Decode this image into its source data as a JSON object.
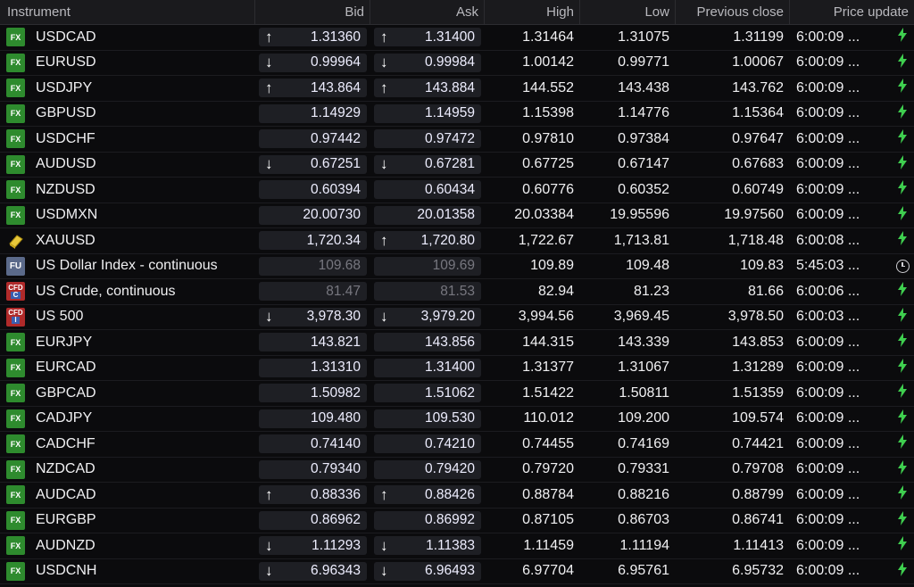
{
  "header": {
    "instrument": "Instrument",
    "bid": "Bid",
    "ask": "Ask",
    "high": "High",
    "low": "Low",
    "prev_close": "Previous close",
    "price_update": "Price update"
  },
  "colors": {
    "accent_up_down_arrows": "#ffffff",
    "bolt": "#3fcf4f",
    "fx_badge": "#2e8b2e",
    "cfd_badge": "#b02a2a"
  },
  "rows": [
    {
      "type": "fx",
      "badge": "FX",
      "name": "USDCAD",
      "bid": "1.31360",
      "bid_dir": "up",
      "ask": "1.31400",
      "ask_dir": "up",
      "high": "1.31464",
      "low": "1.31075",
      "prev": "1.31199",
      "time": "6:00:09 ...",
      "icon": "bolt"
    },
    {
      "type": "fx",
      "badge": "FX",
      "name": "EURUSD",
      "bid": "0.99964",
      "bid_dir": "down",
      "ask": "0.99984",
      "ask_dir": "down",
      "high": "1.00142",
      "low": "0.99771",
      "prev": "1.00067",
      "time": "6:00:09 ...",
      "icon": "bolt"
    },
    {
      "type": "fx",
      "badge": "FX",
      "name": "USDJPY",
      "bid": "143.864",
      "bid_dir": "up",
      "ask": "143.884",
      "ask_dir": "up",
      "high": "144.552",
      "low": "143.438",
      "prev": "143.762",
      "time": "6:00:09 ...",
      "icon": "bolt"
    },
    {
      "type": "fx",
      "badge": "FX",
      "name": "GBPUSD",
      "bid": "1.14929",
      "bid_dir": "",
      "ask": "1.14959",
      "ask_dir": "",
      "high": "1.15398",
      "low": "1.14776",
      "prev": "1.15364",
      "time": "6:00:09 ...",
      "icon": "bolt"
    },
    {
      "type": "fx",
      "badge": "FX",
      "name": "USDCHF",
      "bid": "0.97442",
      "bid_dir": "",
      "ask": "0.97472",
      "ask_dir": "",
      "high": "0.97810",
      "low": "0.97384",
      "prev": "0.97647",
      "time": "6:00:09 ...",
      "icon": "bolt"
    },
    {
      "type": "fx",
      "badge": "FX",
      "name": "AUDUSD",
      "bid": "0.67251",
      "bid_dir": "down",
      "ask": "0.67281",
      "ask_dir": "down",
      "high": "0.67725",
      "low": "0.67147",
      "prev": "0.67683",
      "time": "6:00:09 ...",
      "icon": "bolt"
    },
    {
      "type": "fx",
      "badge": "FX",
      "name": "NZDUSD",
      "bid": "0.60394",
      "bid_dir": "",
      "ask": "0.60434",
      "ask_dir": "",
      "high": "0.60776",
      "low": "0.60352",
      "prev": "0.60749",
      "time": "6:00:09 ...",
      "icon": "bolt"
    },
    {
      "type": "fx",
      "badge": "FX",
      "name": "USDMXN",
      "bid": "20.00730",
      "bid_dir": "",
      "ask": "20.01358",
      "ask_dir": "",
      "high": "20.03384",
      "low": "19.95596",
      "prev": "19.97560",
      "time": "6:00:09 ...",
      "icon": "bolt"
    },
    {
      "type": "gold",
      "badge": "",
      "name": "XAUUSD",
      "bid": "1,720.34",
      "bid_dir": "",
      "ask": "1,720.80",
      "ask_dir": "up",
      "high": "1,722.67",
      "low": "1,713.81",
      "prev": "1,718.48",
      "time": "6:00:08 ...",
      "icon": "bolt"
    },
    {
      "type": "fu",
      "badge": "FU",
      "name": "US Dollar Index - continuous",
      "bid": "109.68",
      "bid_dir": "",
      "ask": "109.69",
      "ask_dir": "",
      "dim": true,
      "high": "109.89",
      "low": "109.48",
      "prev": "109.83",
      "time": "5:45:03 ...",
      "icon": "clock"
    },
    {
      "type": "cfd",
      "badge": "CFD",
      "badge2": "C",
      "name": "US Crude, continuous",
      "bid": "81.47",
      "bid_dir": "",
      "ask": "81.53",
      "ask_dir": "",
      "dim": true,
      "high": "82.94",
      "low": "81.23",
      "prev": "81.66",
      "time": "6:00:06 ...",
      "icon": "bolt"
    },
    {
      "type": "cfd",
      "badge": "CFD",
      "badge2": "I",
      "name": "US 500",
      "bid": "3,978.30",
      "bid_dir": "down",
      "ask": "3,979.20",
      "ask_dir": "down",
      "high": "3,994.56",
      "low": "3,969.45",
      "prev": "3,978.50",
      "time": "6:00:03 ...",
      "icon": "bolt"
    },
    {
      "type": "fx",
      "badge": "FX",
      "name": "EURJPY",
      "bid": "143.821",
      "bid_dir": "",
      "ask": "143.856",
      "ask_dir": "",
      "high": "144.315",
      "low": "143.339",
      "prev": "143.853",
      "time": "6:00:09 ...",
      "icon": "bolt"
    },
    {
      "type": "fx",
      "badge": "FX",
      "name": "EURCAD",
      "bid": "1.31310",
      "bid_dir": "",
      "ask": "1.31400",
      "ask_dir": "",
      "high": "1.31377",
      "low": "1.31067",
      "prev": "1.31289",
      "time": "6:00:09 ...",
      "icon": "bolt"
    },
    {
      "type": "fx",
      "badge": "FX",
      "name": "GBPCAD",
      "bid": "1.50982",
      "bid_dir": "",
      "ask": "1.51062",
      "ask_dir": "",
      "high": "1.51422",
      "low": "1.50811",
      "prev": "1.51359",
      "time": "6:00:09 ...",
      "icon": "bolt"
    },
    {
      "type": "fx",
      "badge": "FX",
      "name": "CADJPY",
      "bid": "109.480",
      "bid_dir": "",
      "ask": "109.530",
      "ask_dir": "",
      "high": "110.012",
      "low": "109.200",
      "prev": "109.574",
      "time": "6:00:09 ...",
      "icon": "bolt"
    },
    {
      "type": "fx",
      "badge": "FX",
      "name": "CADCHF",
      "bid": "0.74140",
      "bid_dir": "",
      "ask": "0.74210",
      "ask_dir": "",
      "high": "0.74455",
      "low": "0.74169",
      "prev": "0.74421",
      "time": "6:00:09 ...",
      "icon": "bolt"
    },
    {
      "type": "fx",
      "badge": "FX",
      "name": "NZDCAD",
      "bid": "0.79340",
      "bid_dir": "",
      "ask": "0.79420",
      "ask_dir": "",
      "high": "0.79720",
      "low": "0.79331",
      "prev": "0.79708",
      "time": "6:00:09 ...",
      "icon": "bolt"
    },
    {
      "type": "fx",
      "badge": "FX",
      "name": "AUDCAD",
      "bid": "0.88336",
      "bid_dir": "up",
      "ask": "0.88426",
      "ask_dir": "up",
      "high": "0.88784",
      "low": "0.88216",
      "prev": "0.88799",
      "time": "6:00:09 ...",
      "icon": "bolt"
    },
    {
      "type": "fx",
      "badge": "FX",
      "name": "EURGBP",
      "bid": "0.86962",
      "bid_dir": "",
      "ask": "0.86992",
      "ask_dir": "",
      "high": "0.87105",
      "low": "0.86703",
      "prev": "0.86741",
      "time": "6:00:09 ...",
      "icon": "bolt"
    },
    {
      "type": "fx",
      "badge": "FX",
      "name": "AUDNZD",
      "bid": "1.11293",
      "bid_dir": "down",
      "ask": "1.11383",
      "ask_dir": "down",
      "high": "1.11459",
      "low": "1.11194",
      "prev": "1.11413",
      "time": "6:00:09 ...",
      "icon": "bolt"
    },
    {
      "type": "fx",
      "badge": "FX",
      "name": "USDCNH",
      "bid": "6.96343",
      "bid_dir": "down",
      "ask": "6.96493",
      "ask_dir": "down",
      "high": "6.97704",
      "low": "6.95761",
      "prev": "6.95732",
      "time": "6:00:09 ...",
      "icon": "bolt"
    }
  ]
}
